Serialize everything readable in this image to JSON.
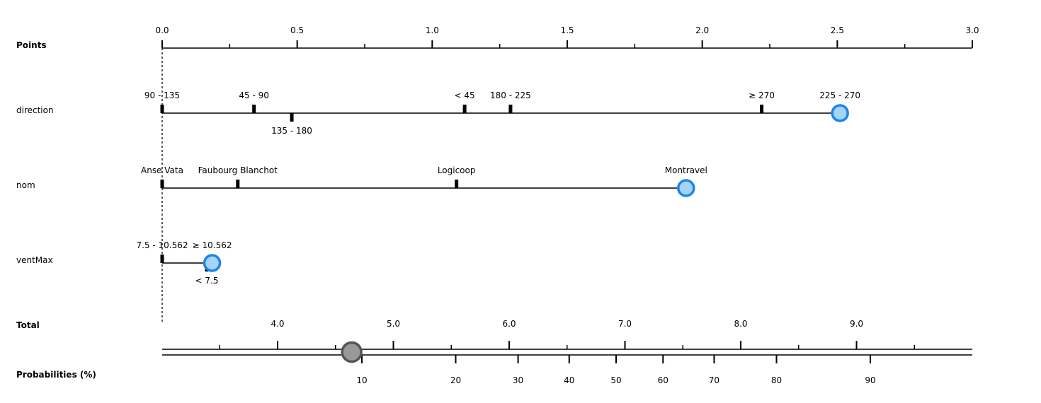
{
  "chart_data": {
    "type": "nomogram",
    "points_axis": {
      "label": "Points",
      "range": [
        0,
        3
      ],
      "major_ticks": [
        0.0,
        0.5,
        1.0,
        1.5,
        2.0,
        2.5,
        3.0
      ],
      "major_tick_labels": [
        "0.0",
        "0.5",
        "1.0",
        "1.5",
        "2.0",
        "2.5",
        "3.0"
      ],
      "minor_ticks": [
        0.25,
        0.75,
        1.25,
        1.75,
        2.25,
        2.75
      ]
    },
    "variables": [
      {
        "name": "direction",
        "levels": [
          {
            "label": "90 - 135",
            "points": 0.0,
            "label_side": "above"
          },
          {
            "label": "45 - 90",
            "points": 0.34,
            "label_side": "above"
          },
          {
            "label": "135 - 180",
            "points": 0.48,
            "label_side": "below"
          },
          {
            "label": "< 45",
            "points": 1.12,
            "label_side": "above"
          },
          {
            "label": "180 - 225",
            "points": 1.29,
            "label_side": "above"
          },
          {
            "label": "≥ 270",
            "points": 2.22,
            "label_side": "above"
          },
          {
            "label": "225 - 270",
            "points": 2.51,
            "label_side": "above"
          }
        ],
        "selected_points": 2.51
      },
      {
        "name": "nom",
        "levels": [
          {
            "label": "Anse Vata",
            "points": 0.0,
            "label_side": "above"
          },
          {
            "label": "Faubourg Blanchot",
            "points": 0.28,
            "label_side": "above"
          },
          {
            "label": "Logicoop",
            "points": 1.09,
            "label_side": "above"
          },
          {
            "label": "Montravel",
            "points": 1.94,
            "label_side": "above"
          }
        ],
        "selected_points": 1.94
      },
      {
        "name": "ventMax",
        "levels": [
          {
            "label": "7.5 - 10.562",
            "points": 0.0,
            "label_side": "above"
          },
          {
            "label": "≥ 10.562",
            "points": 0.185,
            "label_side": "above"
          },
          {
            "label": "< 7.5",
            "points": 0.165,
            "label_side": "below"
          }
        ],
        "selected_points": 0.185
      }
    ],
    "total_axis": {
      "label": "Total",
      "major_ticks": [
        4.0,
        5.0,
        6.0,
        7.0,
        8.0,
        9.0
      ],
      "major_tick_labels": [
        "4.0",
        "5.0",
        "6.0",
        "7.0",
        "8.0",
        "9.0"
      ],
      "minor_ticks": [
        3.5,
        4.5,
        5.5,
        6.5,
        7.5,
        8.5,
        9.5
      ],
      "selected_total": 4.64
    },
    "probability_axis": {
      "label": "Probabilities (%)",
      "tick_values": [
        10,
        20,
        30,
        40,
        50,
        60,
        70,
        80,
        90
      ],
      "tick_labels": [
        "10",
        "20",
        "30",
        "40",
        "50",
        "60",
        "70",
        "80",
        "90"
      ],
      "selected_probability": 7.7
    },
    "colors": {
      "marker_fill": "#a6d3f7",
      "marker_stroke": "#1a86ea",
      "total_marker_fill": "#999999",
      "total_marker_stroke": "#555555",
      "line": "#000000"
    }
  }
}
